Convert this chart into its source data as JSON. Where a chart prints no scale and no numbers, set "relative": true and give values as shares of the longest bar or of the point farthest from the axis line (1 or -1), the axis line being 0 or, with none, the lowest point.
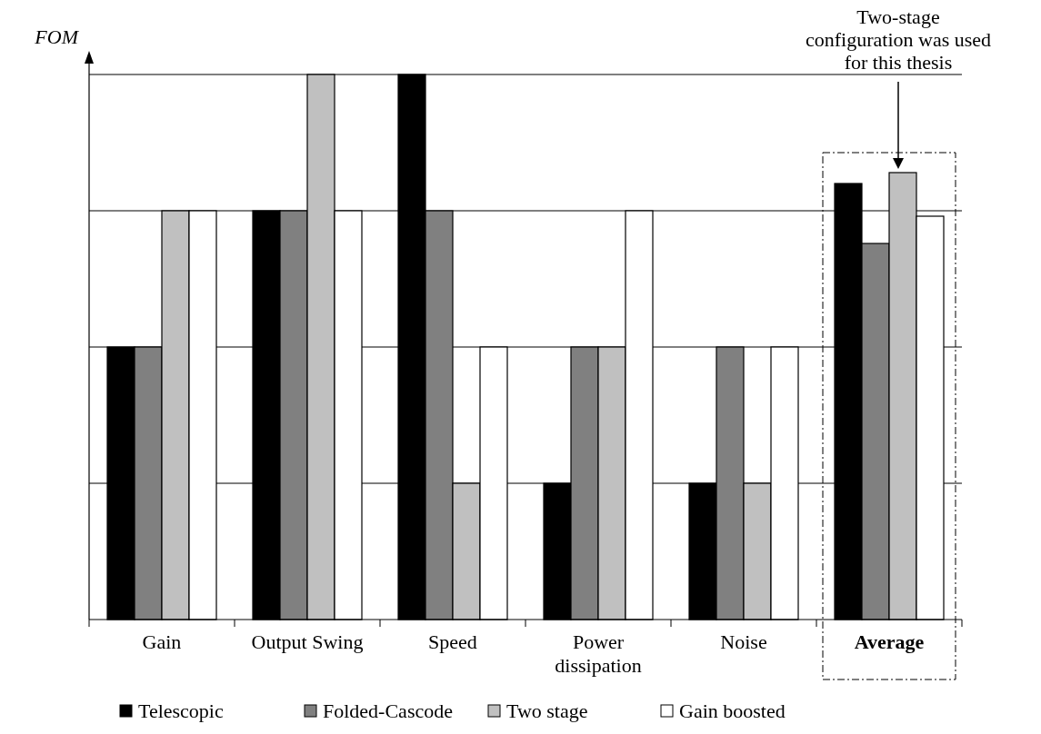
{
  "chart_data": {
    "type": "bar",
    "ylabel": "FOM",
    "relative": true,
    "grid": "y",
    "legend": "bottom",
    "categories": [
      "Gain",
      "Output Swing",
      "Speed",
      "Power dissipation",
      "Noise",
      "Average"
    ],
    "series": [
      {
        "name": "Telescopic",
        "color": "#000000",
        "values": [
          0.5,
          0.75,
          1,
          0.25,
          0.25,
          0.8
        ]
      },
      {
        "name": "Folded-Cascode",
        "color": "#808080",
        "values": [
          0.5,
          0.75,
          0.75,
          0.5,
          0.5,
          0.69
        ]
      },
      {
        "name": "Two stage",
        "color": "#c0c0c0",
        "values": [
          0.75,
          1,
          0.25,
          0.5,
          0.25,
          0.82
        ]
      },
      {
        "name": "Gain boosted",
        "color": "#ffffff",
        "values": [
          0.75,
          0.75,
          0.5,
          0.75,
          0.5,
          0.74
        ]
      }
    ],
    "annotations": [
      "Two-stage configuration was used for this thesis"
    ]
  }
}
